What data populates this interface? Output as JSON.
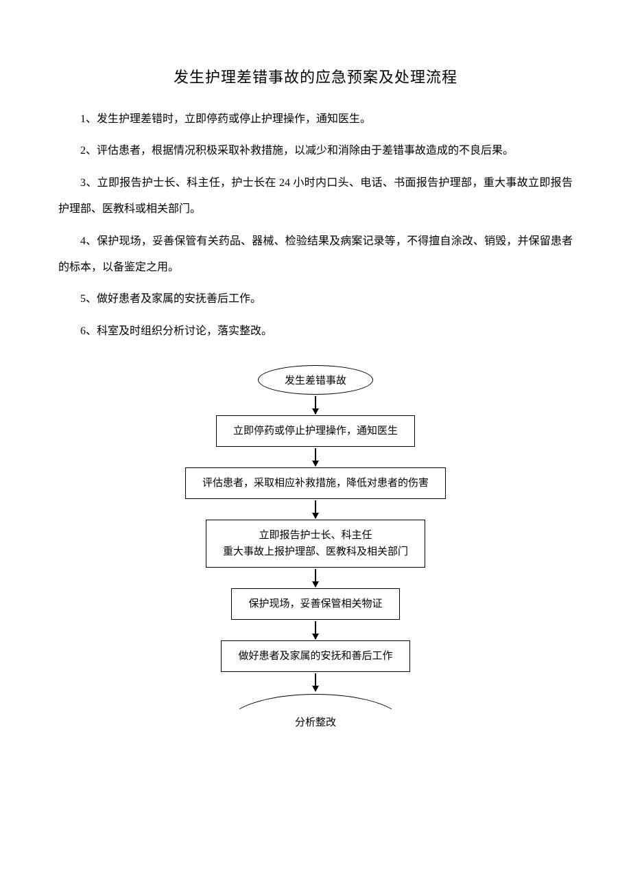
{
  "document": {
    "title": "发生护理差错事故的应急预案及处理流程",
    "paragraphs": [
      "1、发生护理差错时，立即停药或停止护理操作，通知医生。",
      "2、评估患者，根据情况积极采取补救措施，以减少和消除由于差错事故造成的不良后果。",
      "3、立即报告护士长、科主任，护士长在 24 小时内口头、电话、书面报告护理部，重大事故立即报告护理部、医教科或相关部门。",
      "4、保护现场，妥善保管有关药品、器械、检验结果及病案记录等，不得擅自涂改、销毁，并保留患者的标本，以备鉴定之用。",
      "5、做好患者及家属的安抚善后工作。",
      "6、科室及时组织分析讨论，落实整改。"
    ]
  },
  "flowchart": {
    "type": "flowchart",
    "background_color": "#ffffff",
    "border_color": "#000000",
    "text_color": "#000000",
    "node_fontsize": 15,
    "arrow_color": "#000000",
    "nodes": [
      {
        "id": "n1",
        "shape": "ellipse",
        "label": "发生差错事故"
      },
      {
        "id": "n2",
        "shape": "rect",
        "label": "立即停药或停止护理操作，通知医生"
      },
      {
        "id": "n3",
        "shape": "rect",
        "label": "评估患者，采取相应补救措施，降低对患者的伤害"
      },
      {
        "id": "n4",
        "shape": "rect",
        "label_line1": "立即报告护士长、科主任",
        "label_line2": "重大事故上报护理部、医教科及相关部门"
      },
      {
        "id": "n5",
        "shape": "rect",
        "label": "保护现场，妥善保管相关物证"
      },
      {
        "id": "n6",
        "shape": "rect",
        "label": "做好患者及家属的安抚和善后工作"
      },
      {
        "id": "n7",
        "shape": "arc",
        "label": "分析整改"
      }
    ],
    "edges": [
      {
        "from": "n1",
        "to": "n2"
      },
      {
        "from": "n2",
        "to": "n3"
      },
      {
        "from": "n3",
        "to": "n4"
      },
      {
        "from": "n4",
        "to": "n5"
      },
      {
        "from": "n5",
        "to": "n6"
      },
      {
        "from": "n6",
        "to": "n7"
      }
    ]
  }
}
